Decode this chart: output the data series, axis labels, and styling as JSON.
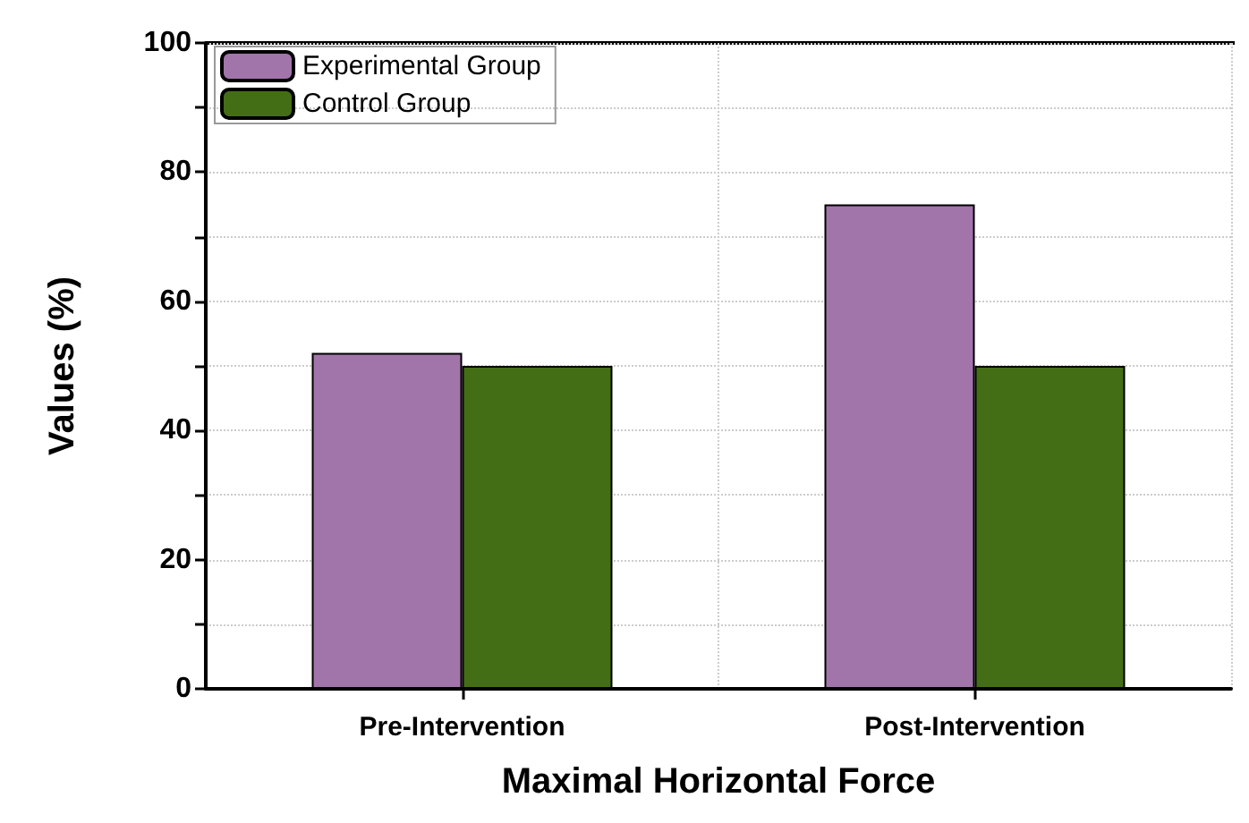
{
  "chart_data": {
    "type": "bar",
    "xlabel": "Maximal Horizontal Force",
    "ylabel": "Values (%)",
    "categories": [
      "Pre-Intervention",
      "Post-Intervention"
    ],
    "series": [
      {
        "name": "Experimental Group",
        "color": "#a275aa",
        "values": [
          52,
          75
        ]
      },
      {
        "name": "Control Group",
        "color": "#436e16",
        "values": [
          50,
          50
        ]
      }
    ],
    "ylim": [
      0,
      100
    ],
    "yticks": [
      0,
      {
        "value": 10,
        "label": null
      },
      20,
      {
        "value": 30,
        "label": null
      },
      40,
      {
        "value": 50,
        "label": null
      },
      60,
      {
        "value": 70,
        "label": null
      },
      80,
      {
        "value": 90,
        "label": null
      },
      100
    ],
    "grid": true,
    "legend": "top left"
  }
}
